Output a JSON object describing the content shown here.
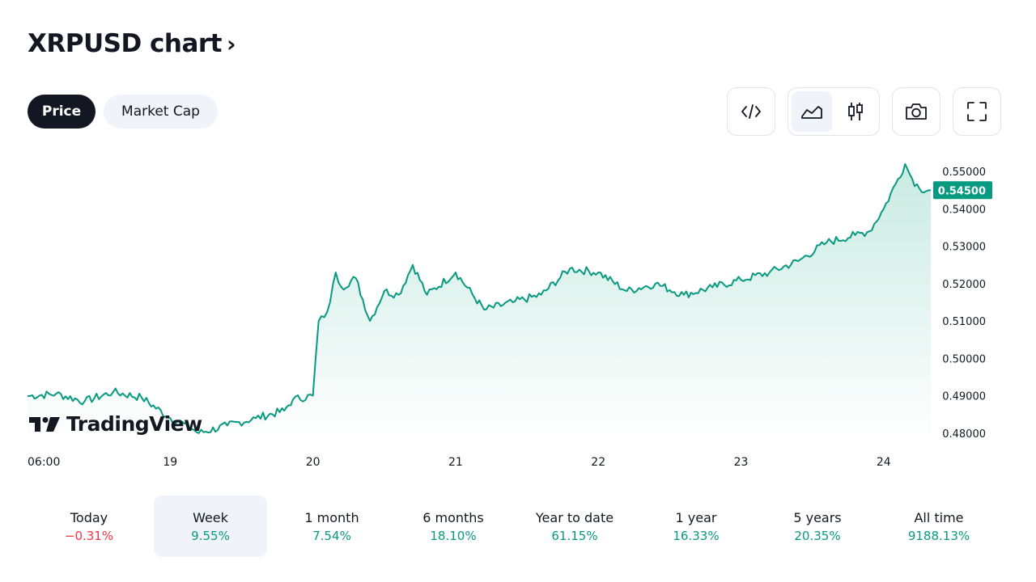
{
  "title": "XRPUSD chart",
  "title_chevron": "›",
  "segment": {
    "active": "Price",
    "inactive": "Market Cap"
  },
  "toolbar_icons": [
    "code-icon",
    "area-chart-icon",
    "candles-icon",
    "camera-icon",
    "fullscreen-icon"
  ],
  "logo_text": "TradingView",
  "chart_data": {
    "type": "area",
    "x_ticks": [
      "06:00",
      "19",
      "20",
      "21",
      "22",
      "23",
      "24"
    ],
    "y_ticks": [
      "0.55000",
      "0.54000",
      "0.53000",
      "0.52000",
      "0.51000",
      "0.50000",
      "0.49000",
      "0.48000"
    ],
    "last_price_label": "0.54500",
    "ylim": [
      0.478,
      0.5548
    ],
    "x_domain": [
      0,
      6.33
    ],
    "grid": false,
    "colors": {
      "line": "#089981",
      "fill_top": "#c9ebe2",
      "fill_bottom": "#ffffff",
      "badge": "#089981"
    },
    "series": [
      {
        "x": [
          0,
          0.2,
          0.4,
          0.6,
          0.8,
          1.0,
          1.1,
          1.2,
          1.4,
          1.6,
          1.8,
          1.86,
          2.0,
          2.04,
          2.08,
          2.12,
          2.16,
          2.2,
          2.3,
          2.4,
          2.5,
          2.6,
          2.7,
          2.8,
          3.0,
          3.2,
          3.4,
          3.6,
          3.8,
          4.0,
          4.2,
          4.4,
          4.6,
          4.8,
          5.0,
          5.2,
          5.4,
          5.6,
          5.8,
          5.9,
          6.0,
          6.1,
          6.15,
          6.2,
          6.25,
          6.33
        ],
        "y": [
          0.4899,
          0.4905,
          0.4885,
          0.491,
          0.4895,
          0.484,
          0.4825,
          0.48,
          0.482,
          0.484,
          0.486,
          0.489,
          0.49,
          0.51,
          0.511,
          0.515,
          0.523,
          0.519,
          0.5215,
          0.51,
          0.518,
          0.517,
          0.525,
          0.517,
          0.523,
          0.513,
          0.515,
          0.517,
          0.524,
          0.523,
          0.518,
          0.52,
          0.517,
          0.519,
          0.521,
          0.523,
          0.526,
          0.531,
          0.533,
          0.534,
          0.54,
          0.548,
          0.552,
          0.548,
          0.5455,
          0.545
        ]
      }
    ]
  },
  "periods": [
    {
      "label": "Today",
      "value": "−0.31%",
      "trend": "neg"
    },
    {
      "label": "Week",
      "value": "9.55%",
      "trend": "pos"
    },
    {
      "label": "1 month",
      "value": "7.54%",
      "trend": "pos"
    },
    {
      "label": "6 months",
      "value": "18.10%",
      "trend": "pos"
    },
    {
      "label": "Year to date",
      "value": "61.15%",
      "trend": "pos"
    },
    {
      "label": "1 year",
      "value": "16.33%",
      "trend": "pos"
    },
    {
      "label": "5 years",
      "value": "20.35%",
      "trend": "pos"
    },
    {
      "label": "All time",
      "value": "9188.13%",
      "trend": "pos"
    }
  ],
  "selected_period": "Week"
}
